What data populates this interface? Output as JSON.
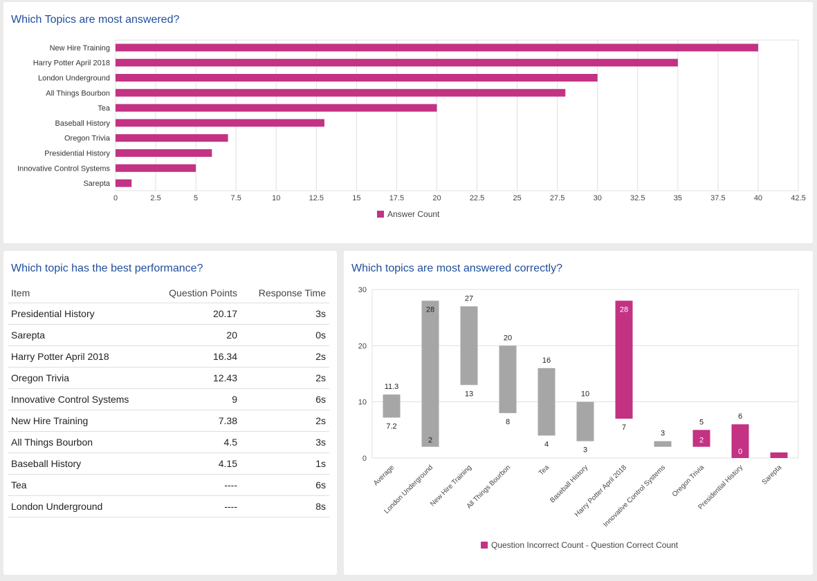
{
  "colors": {
    "accent": "#c33283",
    "neutral": "#a6a6a6",
    "title": "#1f4e9a"
  },
  "chart_data": [
    {
      "type": "bar",
      "orientation": "horizontal",
      "title": "Which Topics are most answered?",
      "categories": [
        "New Hire Training",
        "Harry Potter April 2018",
        "London Underground",
        "All Things Bourbon",
        "Tea",
        "Baseball History",
        "Oregon Trivia",
        "Presidential History",
        "Innovative Control Systems",
        "Sarepta"
      ],
      "series": [
        {
          "name": "Answer Count",
          "values": [
            40,
            35,
            30,
            28,
            20,
            13,
            7,
            6,
            5,
            1
          ]
        }
      ],
      "xlim": [
        0,
        42.5
      ],
      "xticks": [
        "0",
        "2.5",
        "5",
        "7.5",
        "10",
        "12.5",
        "15",
        "17.5",
        "20",
        "22.5",
        "25",
        "27.5",
        "30",
        "32.5",
        "35",
        "37.5",
        "40",
        "42.5"
      ],
      "grid": true,
      "legend": "bottom"
    },
    {
      "type": "bar",
      "subtype": "floating-range",
      "title": "Which topics are most answered correctly?",
      "categories": [
        "Average",
        "London Underground",
        "New Hire Training",
        "All Things Bourbon",
        "Tea",
        "Baseball History",
        "Harry Potter April 2018",
        "Innovative Control Systems",
        "Oregon Trivia",
        "Presidential History",
        "Sarepta"
      ],
      "bars": [
        {
          "low": 7.2,
          "high": 11.3,
          "color": "grey",
          "low_label": "7.2",
          "high_label": "11.3"
        },
        {
          "low": 2,
          "high": 28,
          "color": "grey",
          "low_label": "2",
          "high_label": "28"
        },
        {
          "low": 13,
          "high": 27,
          "color": "grey",
          "low_label": "13",
          "high_label": "27"
        },
        {
          "low": 8,
          "high": 20,
          "color": "grey",
          "low_label": "8",
          "high_label": "20"
        },
        {
          "low": 4,
          "high": 16,
          "color": "grey",
          "low_label": "4",
          "high_label": "16"
        },
        {
          "low": 3,
          "high": 10,
          "color": "grey",
          "low_label": "3",
          "high_label": "10"
        },
        {
          "low": 7,
          "high": 28,
          "color": "magenta",
          "low_label": "7",
          "high_label": "28"
        },
        {
          "low": 2,
          "high": 3,
          "color": "grey",
          "low_label": null,
          "high_label": "3"
        },
        {
          "low": 2,
          "high": 5,
          "color": "magenta",
          "low_label": "2",
          "high_label": "5"
        },
        {
          "low": 0,
          "high": 6,
          "color": "magenta",
          "low_label": "0",
          "high_label": "6"
        },
        {
          "low": 0,
          "high": 1,
          "color": "magenta",
          "low_label": null,
          "high_label": null
        }
      ],
      "ylim": [
        0,
        30
      ],
      "yticks": [
        "0",
        "10",
        "20",
        "30"
      ],
      "legend_label": "Question Incorrect Count - Question Correct Count",
      "grid": true,
      "legend": "bottom"
    }
  ],
  "performance": {
    "title": "Which topic has the best performance?",
    "columns": [
      "Item",
      "Question Points",
      "Response Time"
    ],
    "rows": [
      [
        "Presidential History",
        "20.17",
        "3s"
      ],
      [
        "Sarepta",
        "20",
        "0s"
      ],
      [
        "Harry Potter April 2018",
        "16.34",
        "2s"
      ],
      [
        "Oregon Trivia",
        "12.43",
        "2s"
      ],
      [
        "Innovative Control Systems",
        "9",
        "6s"
      ],
      [
        "New Hire Training",
        "7.38",
        "2s"
      ],
      [
        "All Things Bourbon",
        "4.5",
        "3s"
      ],
      [
        "Baseball History",
        "4.15",
        "1s"
      ],
      [
        "Tea",
        "----",
        "6s"
      ],
      [
        "London Underground",
        "----",
        "8s"
      ]
    ]
  }
}
